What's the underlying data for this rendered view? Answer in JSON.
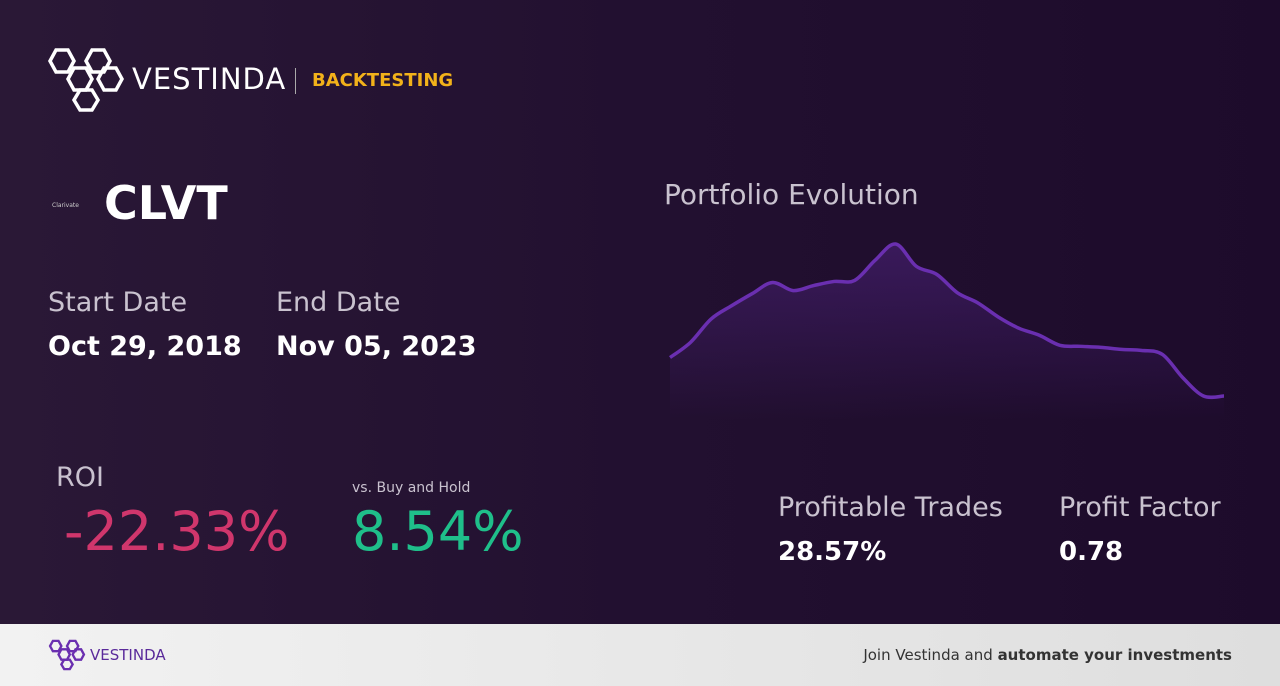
{
  "header": {
    "brand": "VESTINDA",
    "section": "BACKTESTING"
  },
  "asset": {
    "logo_text": "Clarivate",
    "ticker": "CLVT"
  },
  "dates": {
    "start_label": "Start Date",
    "start": "Oct 29, 2018",
    "end_label": "End Date",
    "end": "Nov 05, 2023"
  },
  "roi": {
    "label": "ROI",
    "value": "-22.33%",
    "compare_label": "vs. Buy and Hold",
    "compare_value": "8.54%"
  },
  "stats": {
    "profitable_label": "Profitable Trades",
    "profitable": "28.57%",
    "factor_label": "Profit Factor",
    "factor": "0.78"
  },
  "portfolio_evolution": {
    "title": "Portfolio Evolution",
    "color": "#6a2fb0",
    "values": [
      100,
      108.8,
      122.3,
      130,
      137,
      143.5,
      138.8,
      141.7,
      144.1,
      144.7,
      156.4,
      165.8,
      152.9,
      148.2,
      137.6,
      131.7,
      123.5,
      117,
      112.9,
      107.1,
      106.5,
      105.9,
      104.7,
      104.1,
      101.8,
      88.2,
      77.7,
      77.7
    ]
  },
  "footer": {
    "brand": "VESTINDA",
    "cta_plain": "Join Vestinda and",
    "cta_bold": "automate your investments"
  }
}
